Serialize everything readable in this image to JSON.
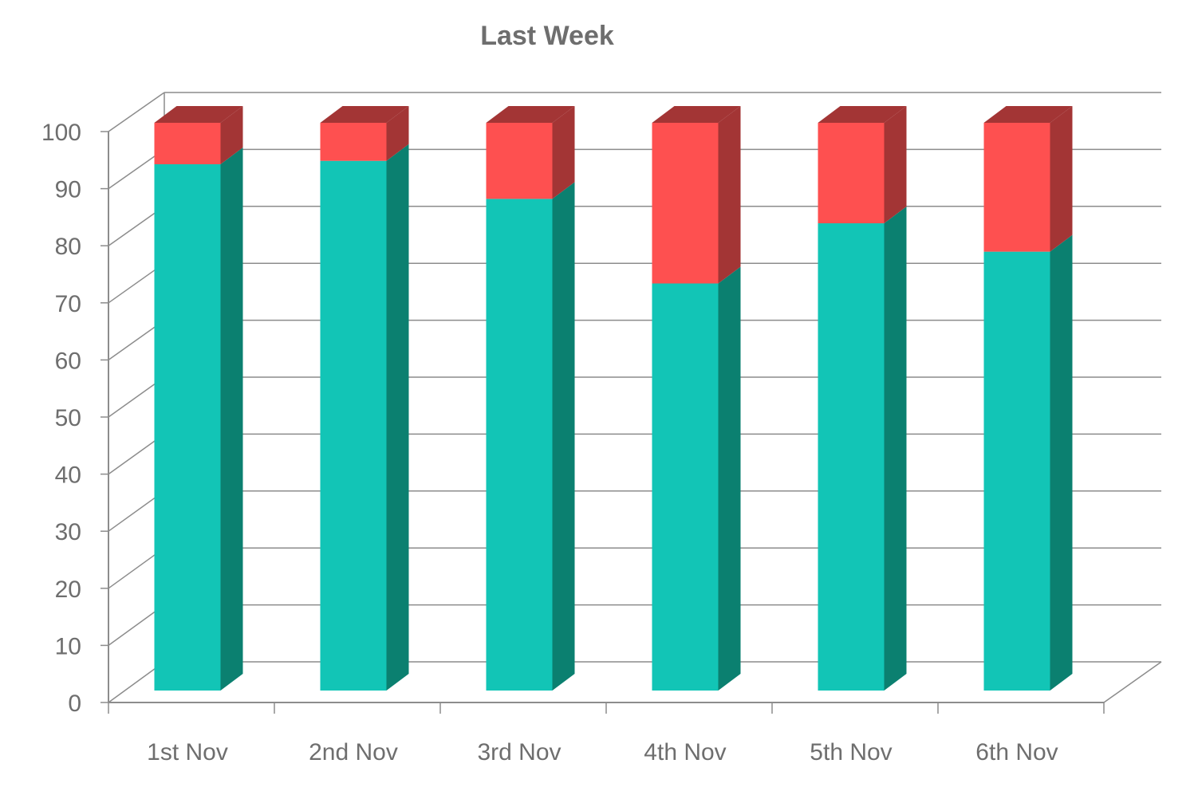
{
  "chart_data": {
    "type": "bar",
    "stacked": true,
    "three_d": true,
    "title": "Last Week",
    "xlabel": "",
    "ylabel": "",
    "categories": [
      "1st Nov",
      "2nd Nov",
      "3rd Nov",
      "4th Nov",
      "5th Nov",
      "6th Nov"
    ],
    "series": [
      {
        "values": [
          92.7,
          93.3,
          86.6,
          71.7,
          82.3,
          77.3
        ],
        "color": "#12c5b6",
        "side_color": "#0b8070"
      },
      {
        "values": [
          7.3,
          6.7,
          13.4,
          28.3,
          17.7,
          22.7
        ],
        "color": "#fe5050",
        "side_color": "#a33535"
      }
    ],
    "ylim": [
      0,
      100
    ],
    "yticks": [
      0,
      10,
      20,
      30,
      40,
      50,
      60,
      70,
      80,
      90,
      100
    ],
    "grid": true,
    "legend": "none"
  }
}
